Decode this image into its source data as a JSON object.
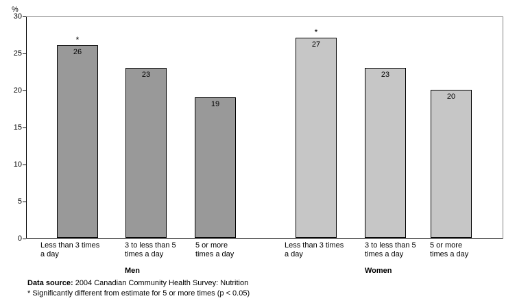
{
  "chart_data": {
    "type": "bar",
    "title": "",
    "xlabel": "",
    "ylabel": "%",
    "ylim": [
      0,
      30
    ],
    "yticks": [
      30,
      25,
      20,
      15,
      10,
      5,
      0
    ],
    "grid": "off",
    "legend": "none",
    "categories": [
      [
        "Less than 3 times",
        "a day"
      ],
      [
        "3 to less than 5",
        "times a day"
      ],
      [
        "5 or more",
        "times a day"
      ]
    ],
    "series": [
      {
        "name": "Men",
        "color": "#999999",
        "values": [
          26,
          23,
          19
        ],
        "significant": [
          true,
          false,
          false
        ]
      },
      {
        "name": "Women",
        "color": "#C6C6C6",
        "values": [
          27,
          23,
          20
        ],
        "significant": [
          true,
          false,
          false
        ]
      }
    ],
    "significance_marker": "*",
    "frame_color": "#808080",
    "axis_color": "#000000",
    "bar_border_color": "#000000"
  },
  "footer": {
    "data_source_label": "Data source:",
    "data_source_text": " 2004 Canadian Community Health Survey: Nutrition",
    "footnote": "* Significantly different from estimate for 5 or more times (p < 0.05)"
  }
}
